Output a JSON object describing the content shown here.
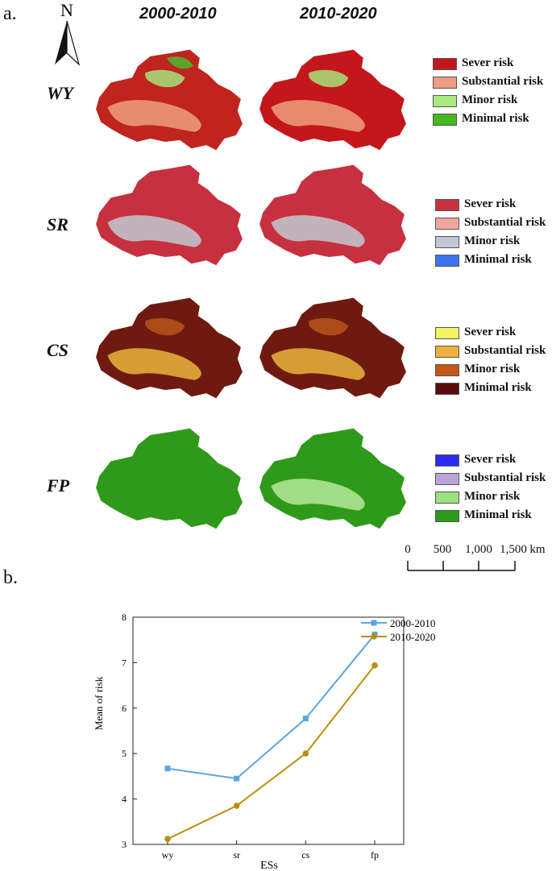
{
  "panel_a": {
    "label": "a.",
    "periods": [
      "2000-2010",
      "2010-2020"
    ],
    "rows": [
      {
        "id": "WY",
        "label": "WY",
        "maps": [
          {
            "base": "#C0241F",
            "patches": [
              "#EF9F7F",
              "#A6E37A",
              "#4CB82E"
            ]
          },
          {
            "base": "#C3171B",
            "patches": [
              "#EF9F7F",
              "#A6E37A"
            ]
          }
        ],
        "legend": [
          {
            "text": "Sever risk",
            "color": "#C2181C"
          },
          {
            "text": "Substantial risk",
            "color": "#EE9E80"
          },
          {
            "text": "Minor risk",
            "color": "#A9EA7F"
          },
          {
            "text": "Minimal risk",
            "color": "#45B81E"
          }
        ]
      },
      {
        "id": "SR",
        "label": "SR",
        "maps": [
          {
            "base": "#C7303E",
            "patches": [
              "#BFC9D2"
            ]
          },
          {
            "base": "#C7303E",
            "patches": [
              "#BFC9D2"
            ]
          }
        ],
        "legend": [
          {
            "text": "Sever risk",
            "color": "#C9313F"
          },
          {
            "text": "Substantial risk",
            "color": "#EEA79B"
          },
          {
            "text": "Minor risk",
            "color": "#BFC9D3"
          },
          {
            "text": "Minimal risk",
            "color": "#3F73F0"
          }
        ]
      },
      {
        "id": "CS",
        "label": "CS",
        "maps": [
          {
            "base": "#6E1A10",
            "patches": [
              "#E9B53C",
              "#B7531A"
            ]
          },
          {
            "base": "#6E1A10",
            "patches": [
              "#E9B53C",
              "#B7531A"
            ]
          }
        ],
        "legend": [
          {
            "text": "Sever risk",
            "color": "#F0F560"
          },
          {
            "text": "Substantial risk",
            "color": "#EDB03E"
          },
          {
            "text": "Minor risk",
            "color": "#C4571A"
          },
          {
            "text": "Minimal risk",
            "color": "#5A0B0B"
          }
        ]
      },
      {
        "id": "FP",
        "label": "FP",
        "maps": [
          {
            "base": "#2F9A1A",
            "patches": []
          },
          {
            "base": "#2F9A1A",
            "patches": [
              "#B7E89A"
            ]
          }
        ],
        "legend": [
          {
            "text": "Sever risk",
            "color": "#2A2CF2"
          },
          {
            "text": "Substantial risk",
            "color": "#B9A5D9"
          },
          {
            "text": "Minor risk",
            "color": "#9BE27F"
          },
          {
            "text": "Minimal risk",
            "color": "#2F9A1A"
          }
        ]
      }
    ],
    "north_label": "N",
    "scale_bar": {
      "ticks": [
        "0",
        "500",
        "1,000",
        "1,500"
      ],
      "unit": "km"
    }
  },
  "panel_b": {
    "label": "b."
  },
  "chart_data": {
    "type": "line",
    "categories": [
      "wy",
      "sr",
      "cs",
      "fp"
    ],
    "series": [
      {
        "name": "2000-2010",
        "values": [
          4.67,
          4.45,
          5.77,
          7.62
        ],
        "color": "#5BA6DE",
        "marker": "square"
      },
      {
        "name": "2010-2020",
        "values": [
          3.12,
          3.85,
          5.0,
          6.94
        ],
        "color": "#B8900E",
        "marker": "circle"
      }
    ],
    "xlabel": "ESs",
    "ylabel": "Mean of risk",
    "ylim": [
      3,
      8
    ],
    "yticks": [
      "3",
      "4",
      "5",
      "6",
      "7",
      "8"
    ],
    "legend_position": "top-right"
  }
}
